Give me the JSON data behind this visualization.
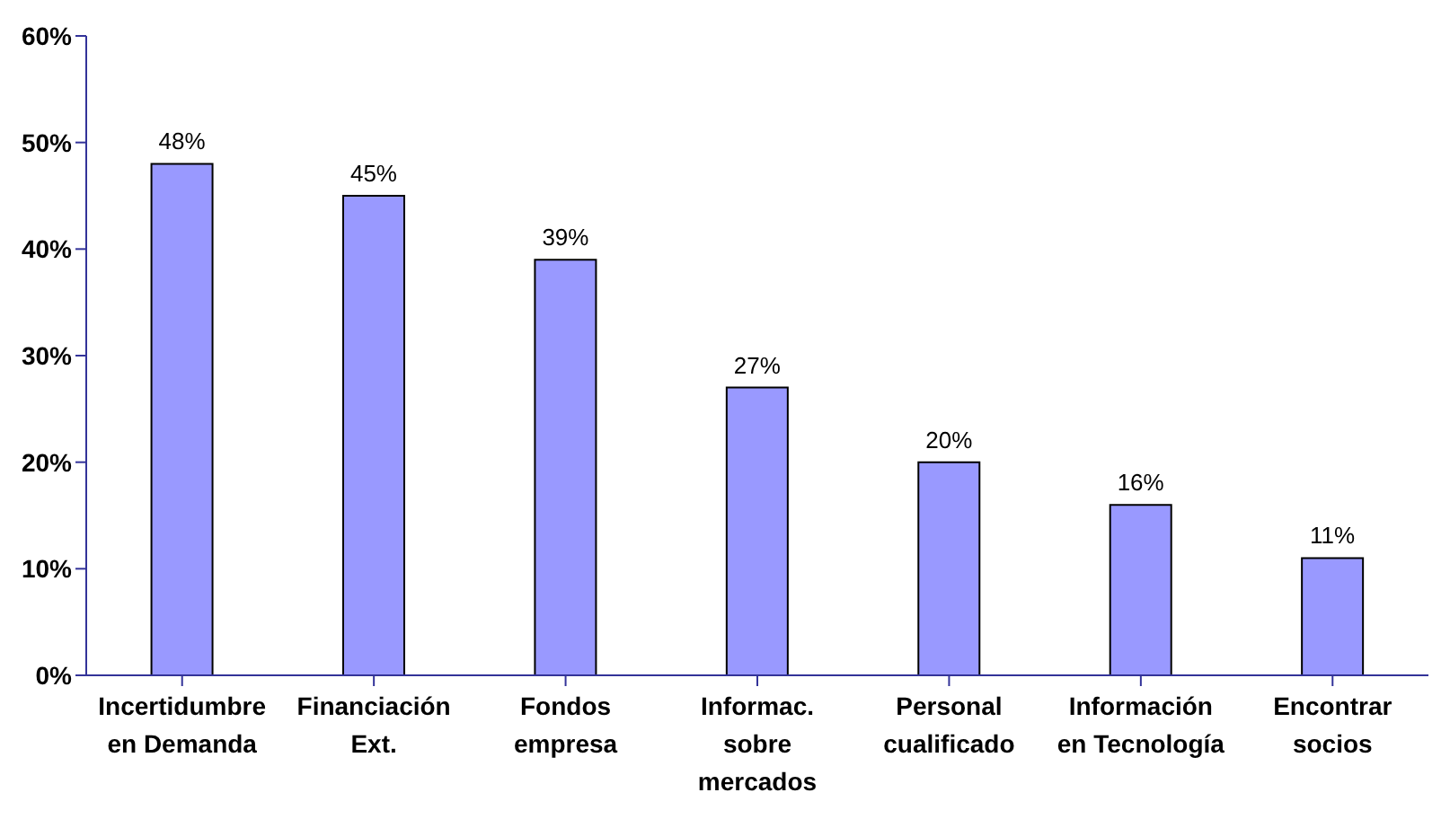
{
  "chart_data": {
    "type": "bar",
    "categories": [
      "Incertidumbre\nen Demanda",
      "Financiación\nExt.",
      "Fondos\nempresa",
      "Informac.\nsobre\nmercados",
      "Personal\ncualificado",
      "Información\nen Tecnología",
      "Encontrar\nsocios"
    ],
    "values": [
      48,
      45,
      39,
      27,
      20,
      16,
      11
    ],
    "color": "#9999ff",
    "data_labels": true,
    "value_labels": [
      "48%",
      "45%",
      "39%",
      "27%",
      "20%",
      "16%",
      "11%"
    ],
    "ylim": [
      0,
      60
    ],
    "yticks": [
      {
        "value": 0,
        "label": "0%"
      },
      {
        "value": 10,
        "label": "10%"
      },
      {
        "value": 20,
        "label": "20%"
      },
      {
        "value": 30,
        "label": "30%"
      },
      {
        "value": 40,
        "label": "40%"
      },
      {
        "value": 50,
        "label": "50%"
      },
      {
        "value": 60,
        "label": "60%"
      }
    ],
    "grid": false
  }
}
